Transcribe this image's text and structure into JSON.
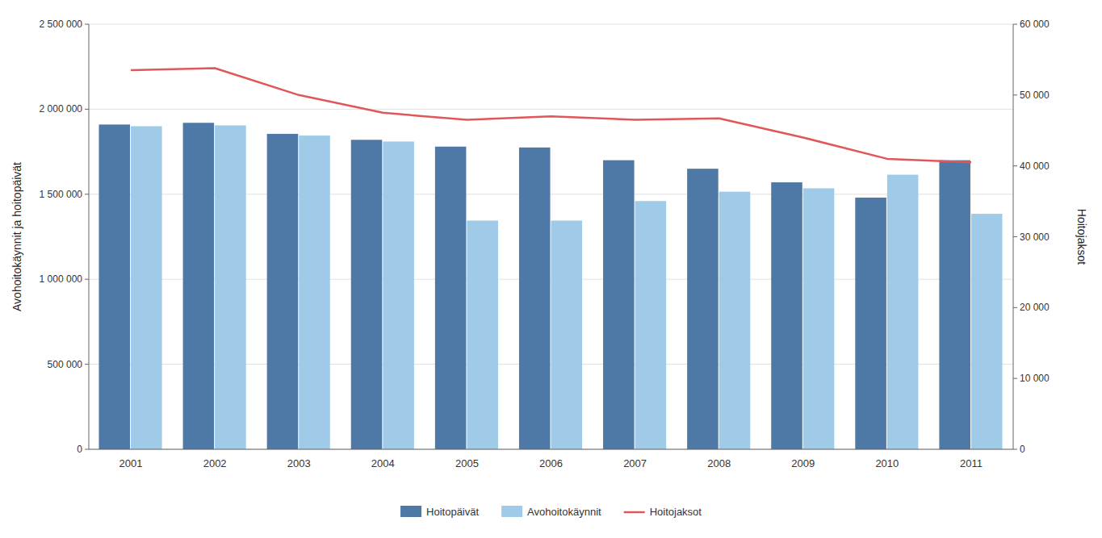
{
  "chart_data": {
    "type": "bar",
    "categories": [
      "2001",
      "2002",
      "2003",
      "2004",
      "2005",
      "2006",
      "2007",
      "2008",
      "2009",
      "2010",
      "2011"
    ],
    "series": [
      {
        "name": "Hoitopäivät",
        "color": "#4e79a7",
        "values": [
          1910000,
          1920000,
          1855000,
          1820000,
          1780000,
          1775000,
          1700000,
          1650000,
          1570000,
          1480000,
          1700000
        ]
      },
      {
        "name": "Avohoitokäynnit",
        "color": "#a0cbe8",
        "values": [
          1900000,
          1905000,
          1845000,
          1810000,
          1345000,
          1345000,
          1460000,
          1515000,
          1535000,
          1615000,
          1385000
        ]
      },
      {
        "name": "Hoitojaksot",
        "type": "line",
        "axis": "y2",
        "color": "#e15759",
        "values": [
          53500,
          53800,
          50000,
          47500,
          46500,
          47000,
          46500,
          46700,
          44000,
          41000,
          40500
        ]
      }
    ],
    "ylabel": "Avohoitokäynnit ja hoitopäivät",
    "y2label": "Hoitojaksot",
    "ylim": [
      0,
      2500000
    ],
    "yticks": [
      0,
      {
        "value": 500000,
        "label": "500 000"
      },
      {
        "value": 1000000,
        "label": "1 000 000"
      },
      {
        "value": 1500000,
        "label": "1 500 000"
      },
      {
        "value": 2000000,
        "label": "2 000 000"
      },
      {
        "value": 2500000,
        "label": "2 500 000"
      }
    ],
    "y2lim": [
      0,
      60000
    ],
    "y2ticks": [
      0,
      {
        "value": 10000,
        "label": "10 000"
      },
      {
        "value": 20000,
        "label": "20 000"
      },
      {
        "value": 30000,
        "label": "30 000"
      },
      {
        "value": 40000,
        "label": "40 000"
      },
      {
        "value": 50000,
        "label": "50 000"
      },
      {
        "value": 60000,
        "label": "60 000"
      }
    ],
    "grid": true,
    "legend": "bottom"
  }
}
